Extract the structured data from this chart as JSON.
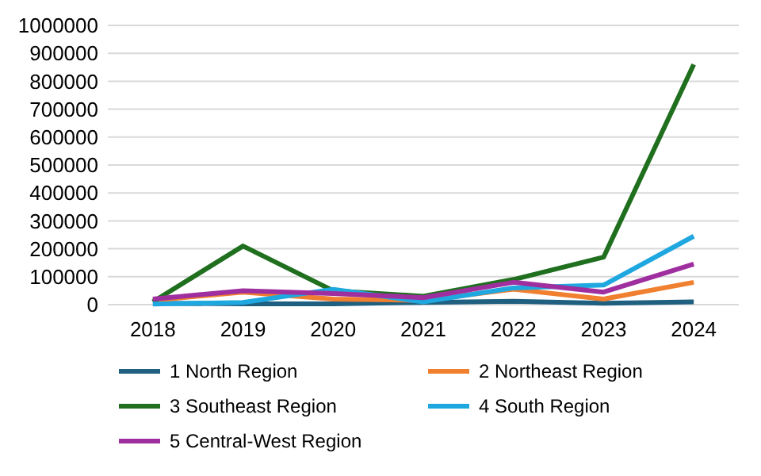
{
  "chart_data": {
    "type": "line",
    "categories": [
      "2018",
      "2019",
      "2020",
      "2021",
      "2022",
      "2023",
      "2024"
    ],
    "series": [
      {
        "name": "1 North Region",
        "color": "#1f5f7f",
        "values": [
          5000,
          3000,
          3000,
          8000,
          12000,
          5000,
          10000
        ]
      },
      {
        "name": "2 Northeast Region",
        "color": "#f07f2f",
        "values": [
          15000,
          45000,
          20000,
          15000,
          55000,
          20000,
          80000
        ]
      },
      {
        "name": "3 Southeast Region",
        "color": "#1f6f1f",
        "values": [
          10000,
          210000,
          50000,
          30000,
          90000,
          170000,
          860000
        ]
      },
      {
        "name": "4 South Region",
        "color": "#1fa7df",
        "values": [
          2000,
          8000,
          55000,
          10000,
          60000,
          70000,
          245000
        ]
      },
      {
        "name": "5 Central-West Region",
        "color": "#9f2f9f",
        "values": [
          20000,
          50000,
          40000,
          25000,
          80000,
          45000,
          145000
        ]
      }
    ],
    "ylim": [
      0,
      1000000
    ],
    "yticks": [
      0,
      100000,
      200000,
      300000,
      400000,
      500000,
      600000,
      700000,
      800000,
      900000,
      1000000
    ],
    "grid": "y",
    "legend": "bottom",
    "marker": "none",
    "line_style": "solid"
  }
}
